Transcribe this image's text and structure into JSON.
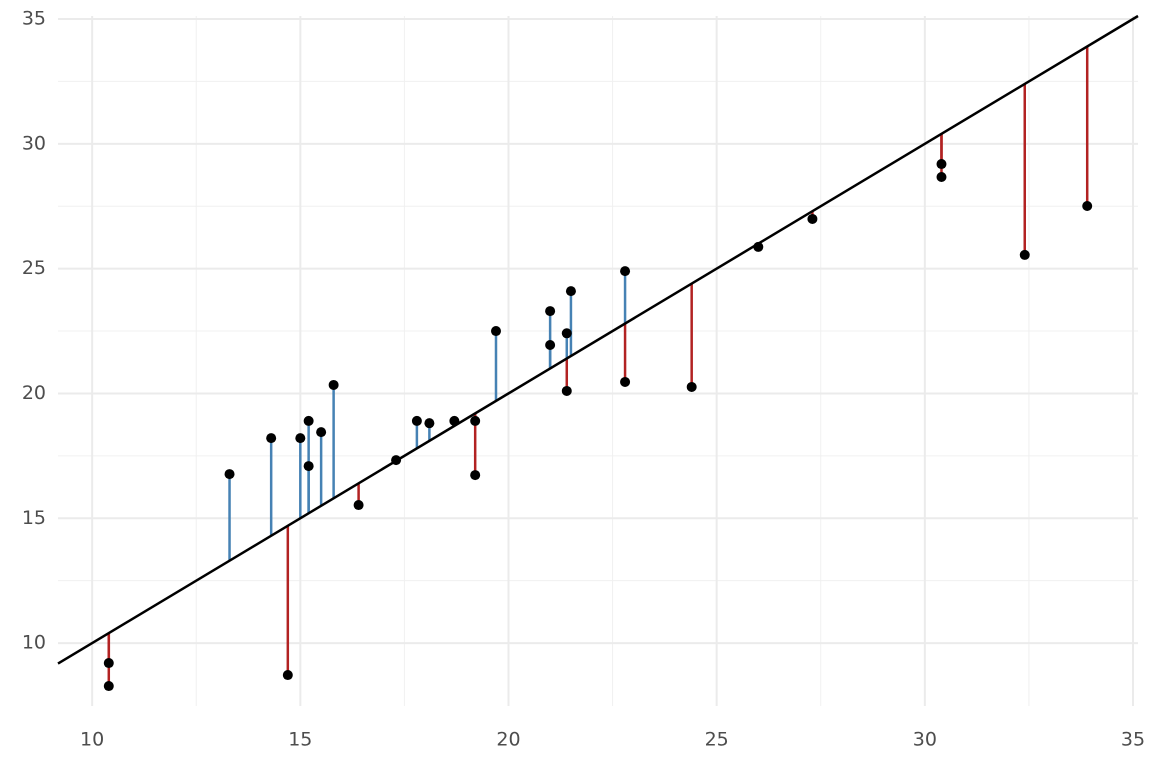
{
  "chart_data": {
    "type": "scatter",
    "x": [
      10.4,
      10.4,
      13.3,
      14.3,
      14.7,
      15.0,
      15.2,
      15.2,
      15.5,
      15.8,
      16.4,
      17.3,
      17.8,
      18.1,
      18.7,
      19.2,
      19.2,
      19.7,
      21.0,
      21.0,
      21.4,
      21.4,
      21.5,
      22.8,
      22.8,
      24.4,
      26.0,
      27.3,
      30.4,
      30.4,
      32.4,
      33.9
    ],
    "y": [
      9.2,
      8.28,
      16.77,
      18.21,
      8.72,
      18.21,
      18.9,
      17.09,
      18.45,
      20.34,
      15.53,
      17.33,
      18.9,
      18.81,
      18.9,
      18.9,
      16.73,
      22.5,
      23.3,
      21.94,
      22.41,
      20.1,
      24.1,
      24.9,
      20.46,
      20.26,
      25.87,
      26.99,
      29.19,
      28.67,
      25.55,
      27.51
    ],
    "point_color": "#000000",
    "color_above": "#4682b4",
    "color_below": "#b22222",
    "reference_line": {
      "slope": 1,
      "intercept": 0,
      "color": "#000000"
    },
    "xlim": [
      9.18,
      35.12
    ],
    "ylim": [
      7.48,
      35.12
    ],
    "xticks": [
      10,
      15,
      20,
      25,
      30,
      35
    ],
    "yticks": [
      10,
      15,
      20,
      25,
      30,
      35
    ],
    "xminor": [
      12.5,
      17.5,
      22.5,
      27.5,
      32.5
    ],
    "yminor": [
      12.5,
      17.5,
      22.5,
      27.5,
      32.5
    ],
    "grid": true
  }
}
